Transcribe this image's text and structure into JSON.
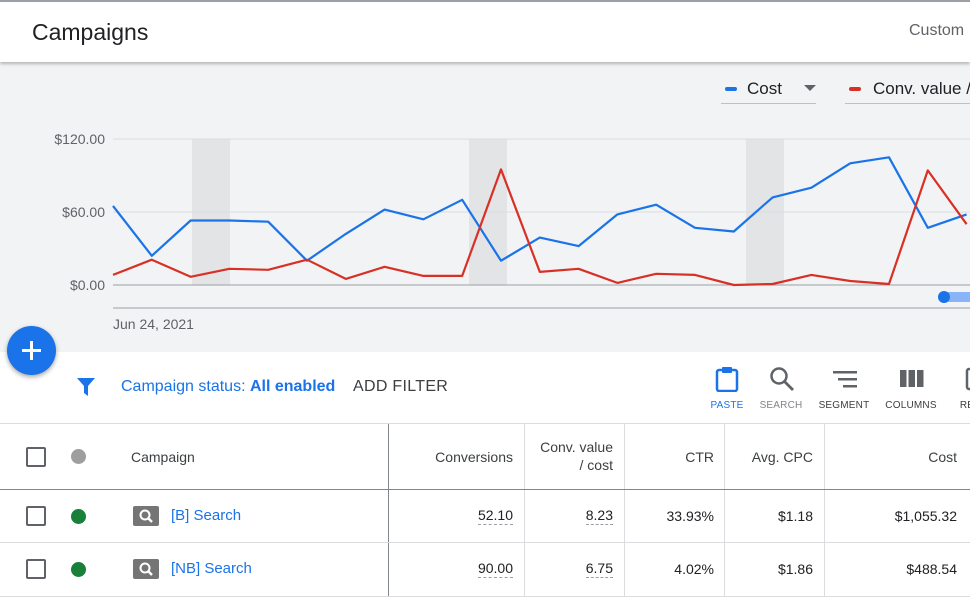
{
  "header": {
    "title": "Campaigns",
    "date_range": "Custom"
  },
  "chart": {
    "metrics": [
      {
        "label": "Cost",
        "color": "#1a73e8",
        "has_dropdown": true
      },
      {
        "label": "Conv. value /",
        "color": "#d93025",
        "has_dropdown": false
      }
    ]
  },
  "chart_data": {
    "type": "line",
    "x_start_label": "Jun 24, 2021",
    "yticks": [
      "$120.00",
      "$60.00",
      "$0.00"
    ],
    "ylim": [
      0,
      120
    ],
    "series": [
      {
        "name": "Cost",
        "color": "#1a73e8",
        "values": [
          65,
          24,
          53,
          53,
          52,
          20,
          42,
          62,
          54,
          70,
          20,
          39,
          32,
          58,
          66,
          47,
          44,
          72,
          80,
          100,
          105,
          47,
          58
        ]
      },
      {
        "name": "Conv. value /",
        "color": "#d93025",
        "values": [
          8.3,
          20.8,
          6.7,
          13.3,
          12.5,
          20.8,
          5.0,
          15.0,
          7.5,
          7.5,
          95.0,
          10.8,
          13.3,
          1.7,
          9.2,
          8.3,
          0.0,
          0.8,
          8.3,
          3.3,
          0.8,
          94.2,
          50.0
        ]
      }
    ]
  },
  "fab": {
    "icon": "plus-icon"
  },
  "filter": {
    "icon": "filter-icon",
    "status_prefix": "Campaign status: ",
    "status_value": "All enabled",
    "add_filter_label": "ADD FILTER"
  },
  "toolbar": {
    "items": [
      {
        "label": "PASTE",
        "icon": "clipboard-icon",
        "state": "active"
      },
      {
        "label": "SEARCH",
        "icon": "search-icon",
        "state": "muted"
      },
      {
        "label": "SEGMENT",
        "icon": "segment-icon",
        "state": "normal"
      },
      {
        "label": "COLUMNS",
        "icon": "columns-icon",
        "state": "normal"
      },
      {
        "label": "RE",
        "icon": "report-icon",
        "state": "normal"
      }
    ]
  },
  "table": {
    "headers": {
      "campaign": "Campaign",
      "conversions": "Conversions",
      "conv_value_cost_line1": "Conv. value",
      "conv_value_cost_line2": "/ cost",
      "ctr": "CTR",
      "avg_cpc": "Avg. CPC",
      "cost": "Cost"
    },
    "status_colors": {
      "header": "#9e9e9e",
      "enabled": "#188038"
    },
    "rows": [
      {
        "campaign": "[B] Search",
        "conversions": "52.10",
        "conv_value_cost": "8.23",
        "ctr": "33.93%",
        "avg_cpc": "$1.18",
        "cost": "$1,055.32"
      },
      {
        "campaign": "[NB] Search",
        "conversions": "90.00",
        "conv_value_cost": "6.75",
        "ctr": "4.02%",
        "avg_cpc": "$1.86",
        "cost": "$488.54"
      }
    ]
  }
}
